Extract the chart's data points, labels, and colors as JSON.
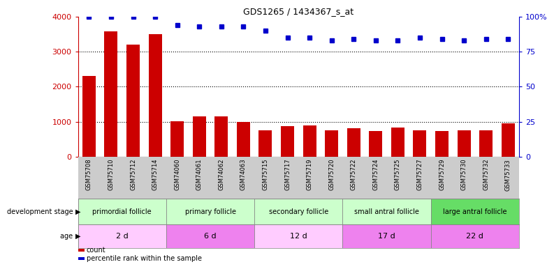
{
  "title": "GDS1265 / 1434367_s_at",
  "samples": [
    "GSM75708",
    "GSM75710",
    "GSM75712",
    "GSM75714",
    "GSM74060",
    "GSM74061",
    "GSM74062",
    "GSM74063",
    "GSM75715",
    "GSM75717",
    "GSM75719",
    "GSM75720",
    "GSM75722",
    "GSM75724",
    "GSM75725",
    "GSM75727",
    "GSM75729",
    "GSM75730",
    "GSM75732",
    "GSM75733"
  ],
  "counts": [
    2300,
    3580,
    3200,
    3500,
    1020,
    1150,
    1150,
    1000,
    760,
    880,
    900,
    760,
    820,
    740,
    840,
    760,
    730,
    750,
    760,
    950
  ],
  "percentile_ranks": [
    100,
    100,
    100,
    100,
    94,
    93,
    93,
    93,
    90,
    85,
    85,
    83,
    84,
    83,
    83,
    85,
    84,
    83,
    84,
    84
  ],
  "bar_color": "#cc0000",
  "dot_color": "#0000cc",
  "left_axis_color": "#cc0000",
  "right_axis_color": "#0000cc",
  "ylim_left": [
    0,
    4000
  ],
  "ylim_right": [
    0,
    100
  ],
  "yticks_left": [
    0,
    1000,
    2000,
    3000,
    4000
  ],
  "ytick_labels_left": [
    "0",
    "1000",
    "2000",
    "3000",
    "4000"
  ],
  "yticks_right": [
    0,
    25,
    50,
    75,
    100
  ],
  "ytick_labels_right": [
    "0",
    "25",
    "50",
    "75",
    "100%"
  ],
  "groups": [
    {
      "label": "primordial follicle",
      "color": "#ccffcc",
      "start": 0,
      "end": 4
    },
    {
      "label": "primary follicle",
      "color": "#ccffcc",
      "start": 4,
      "end": 8
    },
    {
      "label": "secondary follicle",
      "color": "#ccffcc",
      "start": 8,
      "end": 12
    },
    {
      "label": "small antral follicle",
      "color": "#ccffcc",
      "start": 12,
      "end": 16
    },
    {
      "label": "large antral follicle",
      "color": "#66dd66",
      "start": 16,
      "end": 20
    }
  ],
  "ages": [
    {
      "label": "2 d",
      "color": "#ffccff",
      "start": 0,
      "end": 4
    },
    {
      "label": "6 d",
      "color": "#ee82ee",
      "start": 4,
      "end": 8
    },
    {
      "label": "12 d",
      "color": "#ffccff",
      "start": 8,
      "end": 12
    },
    {
      "label": "17 d",
      "color": "#ee82ee",
      "start": 12,
      "end": 16
    },
    {
      "label": "22 d",
      "color": "#ee82ee",
      "start": 16,
      "end": 20
    }
  ],
  "legend_count_label": "count",
  "legend_percentile_label": "percentile rank within the sample",
  "dev_stage_label": "development stage",
  "age_label": "age",
  "tick_label_area_color": "#cccccc",
  "bg_color": "#ffffff"
}
